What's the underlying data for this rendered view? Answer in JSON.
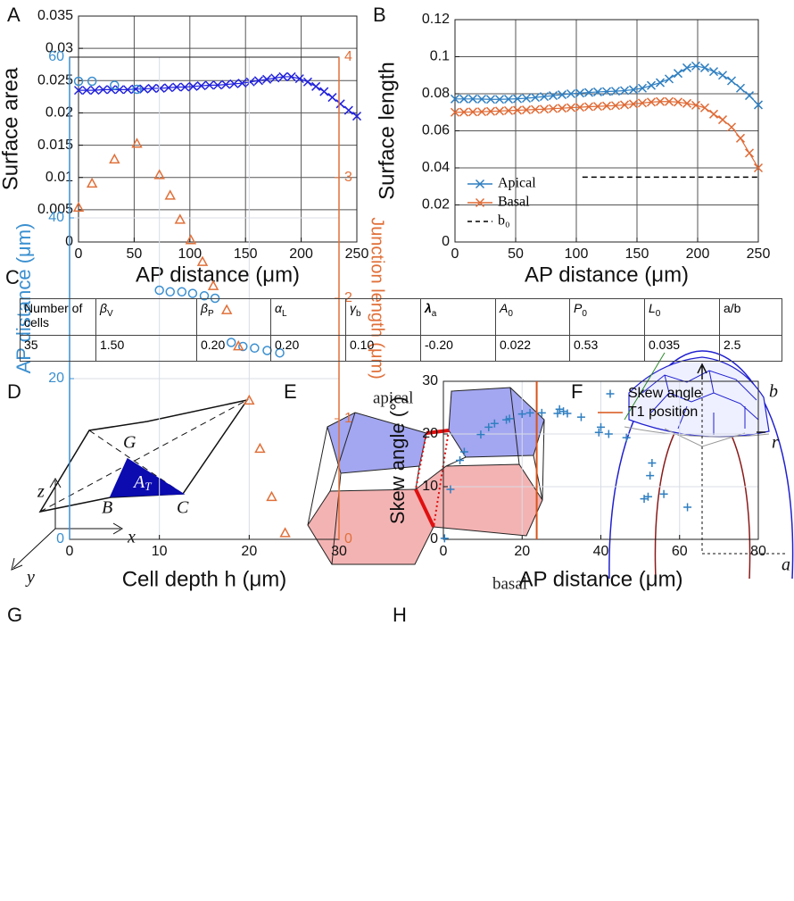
{
  "panel_labels": [
    "A",
    "B",
    "C",
    "D",
    "E",
    "F",
    "G",
    "H"
  ],
  "chart_data": [
    {
      "type": "line",
      "marker": "x",
      "ylabel": "Surface area",
      "xlabel": "AP distance (μm)",
      "xlim": [
        0,
        250
      ],
      "xticks": [
        0,
        50,
        100,
        150,
        200,
        250
      ],
      "ylim": [
        0,
        0.035
      ],
      "yticks": [
        0,
        0.005,
        0.01,
        0.015,
        0.02,
        0.025,
        0.03,
        0.035
      ],
      "grid": true,
      "grid_color": "#555555",
      "series": [
        {
          "color": "#2222dd",
          "x": [
            0,
            7.35,
            14.71,
            22.06,
            29.41,
            36.76,
            44.12,
            51.47,
            58.82,
            66.18,
            73.53,
            80.88,
            88.24,
            95.59,
            102.94,
            110.29,
            117.65,
            125,
            132.35,
            139.71,
            147.06,
            154.41,
            161.76,
            169.12,
            176.47,
            183.82,
            191.18,
            198.53,
            205.88,
            213.24,
            220.59,
            227.94,
            235.29,
            242.65,
            250
          ],
          "values": [
            0.0235,
            0.0235,
            0.0235,
            0.0236,
            0.0236,
            0.0236,
            0.0236,
            0.0237,
            0.0237,
            0.0238,
            0.0238,
            0.0239,
            0.024,
            0.024,
            0.0241,
            0.0242,
            0.0243,
            0.0243,
            0.0244,
            0.0245,
            0.0246,
            0.0248,
            0.025,
            0.0252,
            0.0254,
            0.0256,
            0.0256,
            0.0253,
            0.0248,
            0.0241,
            0.0233,
            0.0224,
            0.0214,
            0.0204,
            0.0195
          ]
        }
      ]
    },
    {
      "type": "line",
      "marker": "x",
      "ylabel": "Surface length",
      "xlabel": "AP distance (μm)",
      "xlim": [
        0,
        250
      ],
      "xticks": [
        0,
        50,
        100,
        150,
        200,
        250
      ],
      "ylim": [
        0,
        0.12
      ],
      "yticks": [
        0,
        0.02,
        0.04,
        0.06,
        0.08,
        0.1,
        0.12
      ],
      "grid": true,
      "grid_color": "#555555",
      "legend": "lower left",
      "series": [
        {
          "name": "Apical",
          "color": "#2f7fc1",
          "x": [
            0,
            7.35,
            14.71,
            22.06,
            29.41,
            36.76,
            44.12,
            51.47,
            58.82,
            66.18,
            73.53,
            80.88,
            88.24,
            95.59,
            102.94,
            110.29,
            117.65,
            125,
            132.35,
            139.71,
            147.06,
            154.41,
            161.76,
            169.12,
            176.47,
            183.82,
            191.18,
            198.53,
            205.88,
            213.24,
            220.59,
            227.94,
            235.29,
            242.65,
            250
          ],
          "values": [
            0.0772,
            0.0772,
            0.0772,
            0.0771,
            0.077,
            0.077,
            0.0771,
            0.0773,
            0.0776,
            0.078,
            0.0785,
            0.079,
            0.0795,
            0.08,
            0.0804,
            0.0807,
            0.081,
            0.0812,
            0.0814,
            0.0817,
            0.0822,
            0.083,
            0.0845,
            0.086,
            0.088,
            0.091,
            0.094,
            0.095,
            0.094,
            0.092,
            0.09,
            0.087,
            0.083,
            0.079,
            0.074
          ]
        },
        {
          "name": "Basal",
          "color": "#e06a35",
          "x": [
            0,
            7.35,
            14.71,
            22.06,
            29.41,
            36.76,
            44.12,
            51.47,
            58.82,
            66.18,
            73.53,
            80.88,
            88.24,
            95.59,
            102.94,
            110.29,
            117.65,
            125,
            132.35,
            139.71,
            147.06,
            154.41,
            161.76,
            169.12,
            176.47,
            183.82,
            191.18,
            198.53,
            205.88,
            213.24,
            220.59,
            227.94,
            235.29,
            242.65,
            250
          ],
          "values": [
            0.07,
            0.0701,
            0.0702,
            0.0703,
            0.0705,
            0.0707,
            0.0709,
            0.0711,
            0.0713,
            0.0715,
            0.0717,
            0.072,
            0.0722,
            0.0725,
            0.0727,
            0.073,
            0.0732,
            0.0734,
            0.0736,
            0.074,
            0.0745,
            0.075,
            0.0755,
            0.0758,
            0.0758,
            0.0755,
            0.0748,
            0.0738,
            0.0724,
            0.069,
            0.066,
            0.062,
            0.056,
            0.048,
            0.04
          ]
        }
      ],
      "hlines": [
        {
          "name": "b₀",
          "y": 0.035,
          "x": [
            105,
            250
          ],
          "color": "#000000"
        }
      ]
    },
    {
      "type": "scatter",
      "ylabel": "AP distance (μm)",
      "y2label": "Junction length (μm)",
      "xlabel": "Cell depth h (μm)",
      "xlim": [
        0,
        30
      ],
      "xticks": [
        0,
        10,
        20,
        30
      ],
      "ylim": [
        0,
        60
      ],
      "yticks": [
        0,
        20,
        40,
        60
      ],
      "ycolor": "#3a8fd0",
      "y2lim": [
        0,
        4
      ],
      "y2ticks": [
        0,
        1,
        2,
        3,
        4
      ],
      "y2color": "#e0703a",
      "grid": true,
      "grid_color": "#d8dde6",
      "series": [
        {
          "marker": "o",
          "color": "#3a8fd0",
          "x": [
            1,
            2.5,
            5,
            7.5,
            10,
            11.2,
            12.5,
            13.7,
            15,
            16.2,
            18,
            19.3,
            20.6,
            22,
            23.4
          ],
          "values": [
            57,
            57,
            56.5,
            56,
            31,
            30.8,
            30.8,
            30.6,
            30.3,
            30,
            24.5,
            24,
            23.8,
            23.5,
            23.2
          ]
        },
        {
          "marker": "^",
          "color": "#e0703a",
          "axis": "y2",
          "x": [
            1,
            2.5,
            5,
            7.5,
            10,
            11.2,
            12.3,
            13.5,
            14.8,
            16,
            17.5,
            18.8,
            20,
            21.2,
            22.5,
            24
          ],
          "values": [
            2.75,
            2.95,
            3.15,
            3.28,
            3.02,
            2.85,
            2.65,
            2.48,
            2.3,
            2.1,
            1.9,
            1.6,
            1.15,
            0.75,
            0.35,
            0.05
          ]
        }
      ]
    },
    {
      "type": "scatter",
      "ylabel": "Skew angle (°)",
      "xlabel": "AP distance (μm)",
      "xlim": [
        0,
        80
      ],
      "xticks": [
        0,
        20,
        40,
        60,
        80
      ],
      "ylim": [
        0,
        30
      ],
      "yticks": [
        0,
        10,
        20,
        30
      ],
      "grid": true,
      "grid_color": "#d8dde6",
      "legend": "upper right",
      "series": [
        {
          "name": "Skew angle",
          "marker": "+",
          "color": "#2f7fc1",
          "x": [
            0.3,
            1.8,
            4.2,
            5.3,
            9.5,
            11.5,
            13,
            16,
            16.8,
            20,
            22,
            25,
            29,
            29.5,
            30.5,
            31.5,
            35,
            39.5,
            40,
            42,
            46.5,
            51,
            52,
            52.5,
            53,
            56,
            62
          ],
          "values": [
            0.2,
            9.5,
            15,
            16.6,
            19.9,
            21.3,
            22,
            22.7,
            22.9,
            23.8,
            24,
            24,
            23.9,
            24.7,
            24.3,
            23.9,
            23.2,
            20.3,
            21.3,
            20,
            19.3,
            7.7,
            8.1,
            12.1,
            14.5,
            8.6,
            6.1
          ]
        }
      ],
      "vlines": [
        {
          "name": "T1 position",
          "x": 23.7,
          "color": "#d95319"
        }
      ]
    }
  ],
  "table": {
    "header": [
      {
        "text": "Number of cells"
      },
      {
        "symbol": "β",
        "sub": "V"
      },
      {
        "symbol": "β",
        "sub": "P"
      },
      {
        "symbol": "α",
        "sub": "L"
      },
      {
        "symbol": "γ",
        "sub": "b"
      },
      {
        "symbol": "λ",
        "sub": "a"
      },
      {
        "symbol": "A",
        "sub": "0"
      },
      {
        "symbol": "P",
        "sub": "0"
      },
      {
        "symbol": "L",
        "sub": "0"
      },
      {
        "text": "a/b"
      }
    ],
    "row": [
      "35",
      "1.50",
      "0.20",
      "0.20",
      "0.10",
      "-0.20",
      "0.022",
      "0.53",
      "0.035",
      "2.5"
    ]
  },
  "diagrams": {
    "D": {
      "axes": [
        "z",
        "x",
        "y"
      ],
      "points": [
        "G",
        "B",
        "C"
      ],
      "area": {
        "text": "A",
        "sub": "T"
      }
    },
    "E": {
      "top": "apical",
      "bottom": "basal"
    },
    "F": {
      "labels": [
        "b",
        "r",
        "a"
      ]
    }
  }
}
